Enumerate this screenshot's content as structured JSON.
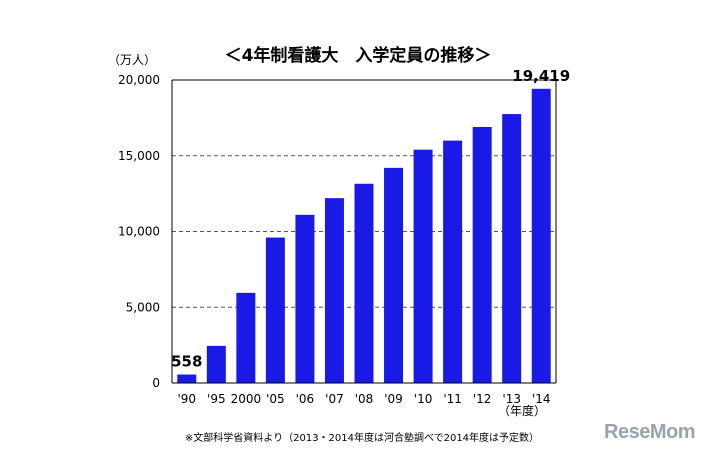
{
  "chart_data": {
    "type": "bar",
    "title": "＜4年制看護大　入学定員の推移＞",
    "unit_label": "（万人）",
    "categories": [
      "'90",
      "'95",
      "2000",
      "'05",
      "'06",
      "'07",
      "'08",
      "'09",
      "'10",
      "'11",
      "'12",
      "'13",
      "'14"
    ],
    "values": [
      558,
      2450,
      5950,
      9600,
      11100,
      12200,
      13150,
      14200,
      15400,
      16000,
      16900,
      17750,
      19419
    ],
    "data_labels": [
      {
        "index": 0,
        "text": "558"
      },
      {
        "index": 12,
        "text": "19,419"
      }
    ],
    "ylim": [
      0,
      20000
    ],
    "yticks": [
      0,
      5000,
      10000,
      15000,
      20000
    ],
    "ytick_labels": [
      "0",
      "5,000",
      "10,000",
      "15,000",
      "20,000"
    ],
    "x_axis_note": "（年度）",
    "grid": "horizontal dashed",
    "bar_color": "#1a1ae6"
  },
  "footnote": "※文部科学省資料より（2013・2014年度は河合塾調べで2014年度は予定数）",
  "logo": "ReseMom"
}
